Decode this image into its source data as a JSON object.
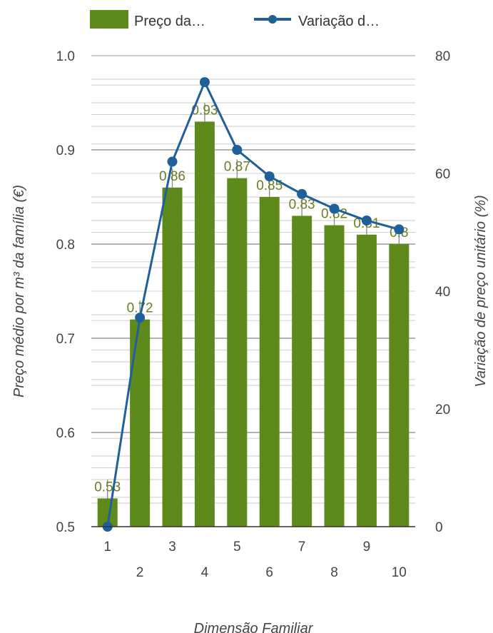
{
  "chart_data": {
    "type": "bar",
    "categories": [
      "1",
      "2",
      "3",
      "4",
      "5",
      "6",
      "7",
      "8",
      "9",
      "10"
    ],
    "xlabel": "Dimensão Familiar",
    "ylabel": "Preço médio por m³ da família (€)",
    "y2label": "Variação de preço unitário (%)",
    "ylim": [
      0.5,
      1.0
    ],
    "y2lim": [
      0,
      80
    ],
    "yticks": [
      "0.5",
      "0.6",
      "0.7",
      "0.8",
      "0.9",
      "1.0"
    ],
    "y2ticks": [
      "0",
      "20",
      "40",
      "60",
      "80"
    ],
    "grid": true,
    "legend_position": "top",
    "series": [
      {
        "name": "Preço da…",
        "type": "bar",
        "axis": "left",
        "color": "#5e8a1c",
        "values": [
          0.53,
          0.72,
          0.86,
          0.93,
          0.87,
          0.85,
          0.83,
          0.82,
          0.81,
          0.8
        ],
        "labels": [
          "0.53",
          "0.72",
          "0.86",
          "0.93",
          "0.87",
          "0.85",
          "0.83",
          "0.82",
          "0.81",
          "0.8"
        ],
        "error_upper": [
          0.55,
          0.74,
          0.88,
          0.95,
          0.89,
          0.87,
          0.85,
          0.84,
          0.83,
          0.82
        ]
      },
      {
        "name": "Variação d…",
        "type": "line",
        "axis": "right",
        "color": "#1f5f9a",
        "values": [
          0,
          35.5,
          62,
          75.5,
          64,
          59.5,
          56.5,
          54,
          52,
          50.5
        ]
      }
    ]
  }
}
